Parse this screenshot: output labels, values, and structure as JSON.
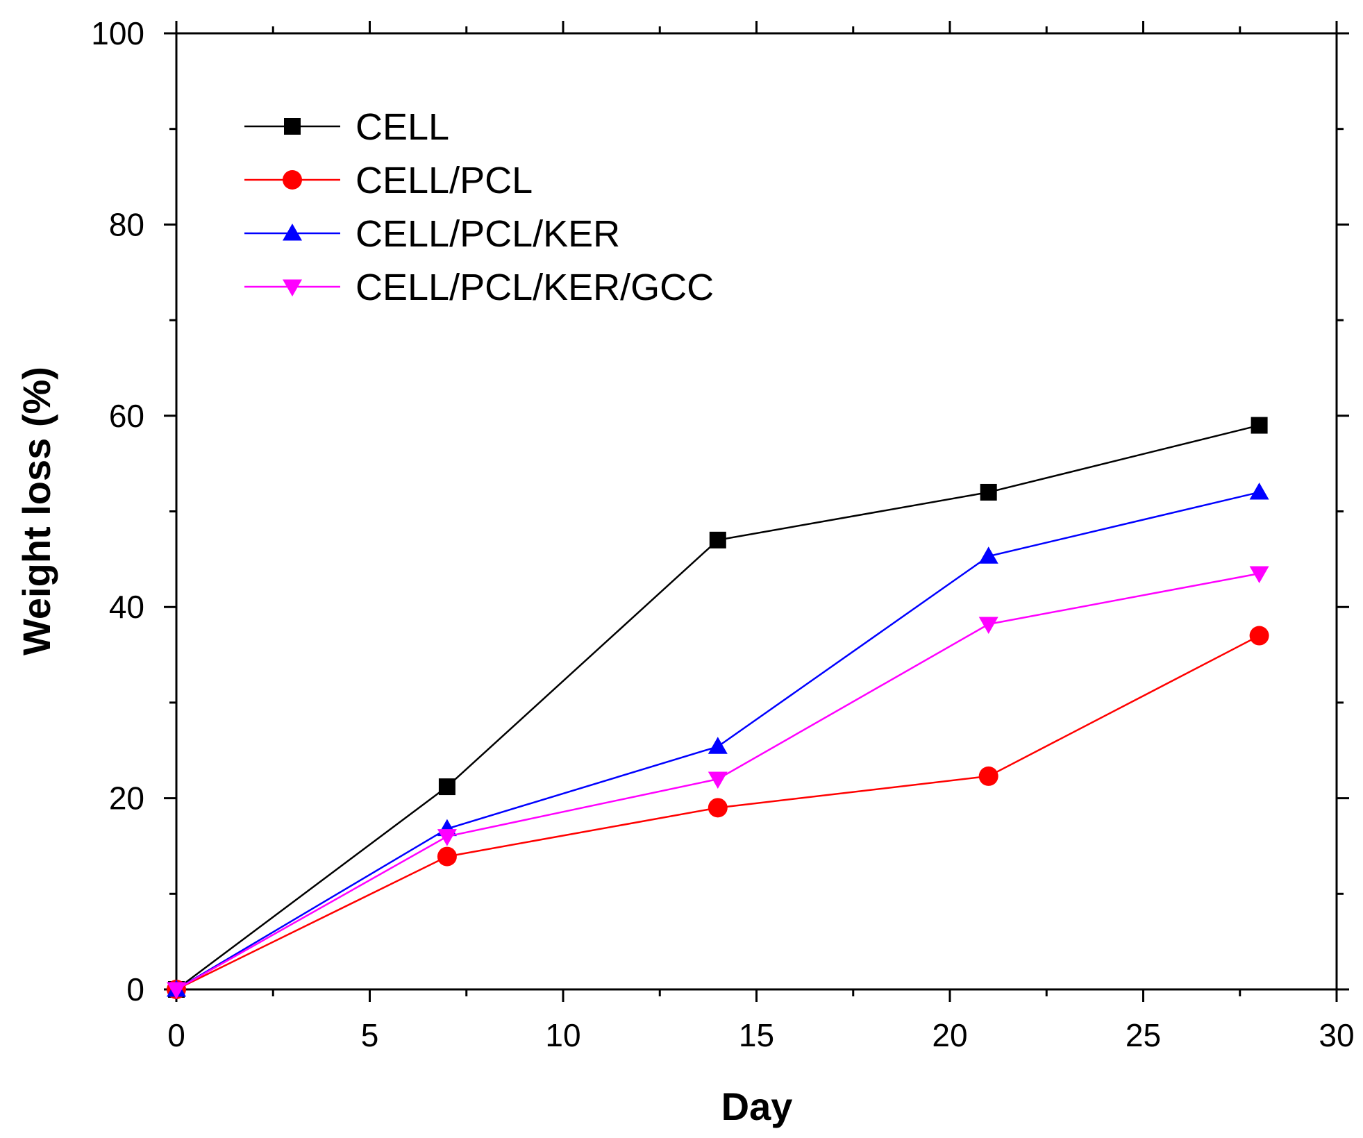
{
  "chart_data": {
    "type": "line",
    "title": "",
    "xlabel": "Day",
    "ylabel": "Weight loss (%)",
    "xlim": [
      0,
      30
    ],
    "ylim": [
      0,
      100
    ],
    "x_ticks": [
      0,
      5,
      10,
      15,
      20,
      25,
      30
    ],
    "y_ticks": [
      0,
      20,
      40,
      60,
      80,
      100
    ],
    "grid": false,
    "legend_position": "top-left",
    "x": [
      0,
      7,
      14,
      21,
      28
    ],
    "series": [
      {
        "name": "CELL",
        "color": "#000000",
        "marker": "square",
        "values": [
          0,
          21.2,
          47.0,
          52.0,
          59.0
        ]
      },
      {
        "name": "CELL/PCL",
        "color": "#ff0000",
        "marker": "circle",
        "values": [
          0,
          13.9,
          19.0,
          22.3,
          37.0
        ]
      },
      {
        "name": "CELL/PCL/KER",
        "color": "#0000ff",
        "marker": "triangle-up",
        "values": [
          0,
          16.8,
          25.4,
          45.3,
          52.0
        ]
      },
      {
        "name": "CELL/PCL/KER/GCC",
        "color": "#ff00ff",
        "marker": "triangle-down",
        "values": [
          0,
          16.0,
          22.0,
          38.2,
          43.5
        ]
      }
    ]
  }
}
